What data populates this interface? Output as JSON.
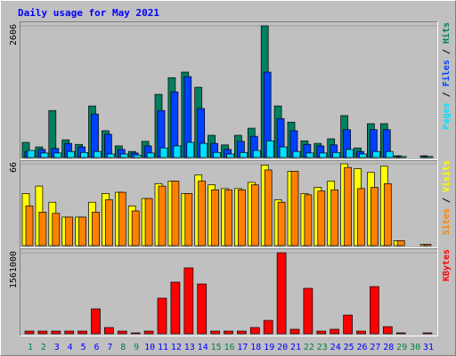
{
  "title": "Daily usage for May 2021",
  "legend_separator": " / ",
  "chart_data": [
    {
      "type": "bar",
      "ylim": [
        0,
        2606
      ],
      "yticks": [
        2606
      ],
      "series": [
        {
          "name": "Hits",
          "color": "#008060",
          "values": [
            300,
            210,
            930,
            350,
            260,
            1020,
            530,
            230,
            120,
            320,
            1250,
            1580,
            1690,
            1390,
            440,
            250,
            440,
            580,
            2606,
            1020,
            700,
            330,
            280,
            370,
            830,
            190,
            670,
            670,
            35,
            0,
            35
          ]
        },
        {
          "name": "Files",
          "color": "#0040ff",
          "values": [
            120,
            160,
            180,
            280,
            210,
            860,
            460,
            160,
            90,
            230,
            930,
            1300,
            1600,
            970,
            280,
            160,
            320,
            420,
            1690,
            770,
            530,
            260,
            230,
            250,
            550,
            120,
            550,
            550,
            20,
            0,
            20
          ]
        },
        {
          "name": "Pages",
          "color": "#00e0ff",
          "values": [
            140,
            90,
            90,
            120,
            100,
            120,
            70,
            70,
            50,
            90,
            190,
            230,
            300,
            280,
            100,
            70,
            100,
            140,
            330,
            210,
            120,
            90,
            90,
            100,
            160,
            70,
            120,
            120,
            20,
            0,
            20
          ]
        }
      ]
    },
    {
      "type": "bar",
      "ylim": [
        0,
        66
      ],
      "yticks": [
        66
      ],
      "series": [
        {
          "name": "Visits",
          "color": "#ffff00",
          "values": [
            42,
            48,
            35,
            23,
            23,
            35,
            42,
            43,
            32,
            38,
            50,
            52,
            42,
            57,
            49,
            46,
            46,
            51,
            65,
            37,
            60,
            42,
            47,
            52,
            66,
            62,
            59,
            64,
            4,
            0,
            1
          ]
        },
        {
          "name": "Sites",
          "color": "#ff8000",
          "values": [
            32,
            27,
            26,
            23,
            23,
            27,
            37,
            43,
            28,
            38,
            48,
            52,
            42,
            52,
            45,
            45,
            45,
            49,
            61,
            35,
            60,
            41,
            44,
            45,
            63,
            46,
            47,
            50,
            4,
            0,
            1
          ]
        }
      ]
    },
    {
      "type": "bar",
      "ylim": [
        0,
        1561000
      ],
      "yticks": [
        1561000
      ],
      "series": [
        {
          "name": "KBytes",
          "color": "#ff0000",
          "values": [
            51000,
            51000,
            51000,
            51000,
            51000,
            480000,
            120000,
            51000,
            17000,
            51000,
            686000,
            995000,
            1270000,
            960000,
            51000,
            51000,
            51000,
            120000,
            257000,
            1561000,
            86000,
            875000,
            51000,
            86000,
            360000,
            51000,
            909000,
            137000,
            17000,
            0,
            17000
          ]
        }
      ],
      "categories": [
        "1",
        "2",
        "3",
        "4",
        "5",
        "6",
        "7",
        "8",
        "9",
        "10",
        "11",
        "12",
        "13",
        "14",
        "15",
        "16",
        "17",
        "18",
        "19",
        "20",
        "21",
        "22",
        "23",
        "24",
        "25",
        "26",
        "27",
        "28",
        "29",
        "30",
        "31"
      ],
      "category_colors": [
        "#008040",
        "#008040",
        "#0000ff",
        "#0000ff",
        "#0000ff",
        "#0000ff",
        "#0000ff",
        "#008040",
        "#008040",
        "#0000ff",
        "#0000ff",
        "#0000ff",
        "#0000ff",
        "#0000ff",
        "#008040",
        "#008040",
        "#0000ff",
        "#0000ff",
        "#0000ff",
        "#0000ff",
        "#0000ff",
        "#008040",
        "#008040",
        "#0000ff",
        "#0000ff",
        "#0000ff",
        "#0000ff",
        "#0000ff",
        "#008040",
        "#008040",
        "#0000ff"
      ]
    }
  ]
}
